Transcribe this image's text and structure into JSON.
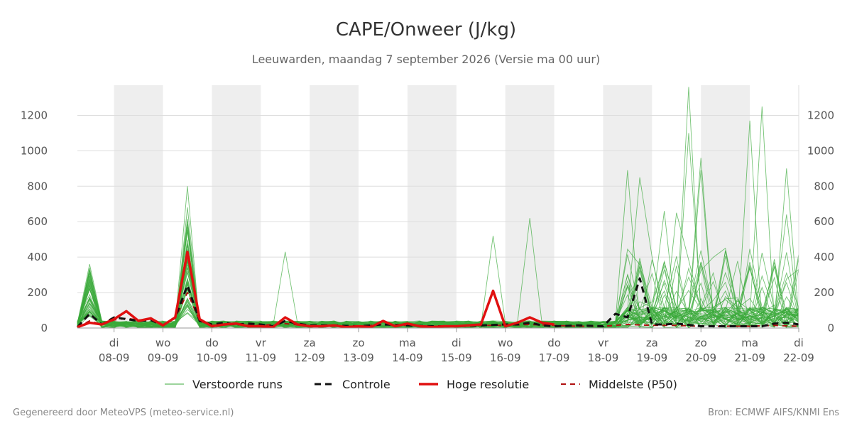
{
  "chart_data": {
    "type": "line",
    "title": "CAPE/Onweer (J/kg)",
    "subtitle": "Leeuwarden, maandag  7 september 2026 (Versie ma 00 uur)",
    "footer_left": "Gegenereerd door MeteoVPS (meteo-service.nl)",
    "footer_right": "Bron: ECMWF AIFS/KNMI Ens",
    "ylim": [
      0,
      1370
    ],
    "yticks": [
      0,
      200,
      400,
      600,
      800,
      1000,
      1200
    ],
    "x_start": 7.25,
    "x_end": 22.0,
    "xticks": [
      {
        "x": 8,
        "day": "di",
        "date": "08-09"
      },
      {
        "x": 9,
        "day": "wo",
        "date": "09-09"
      },
      {
        "x": 10,
        "day": "do",
        "date": "10-09"
      },
      {
        "x": 11,
        "day": "vr",
        "date": "11-09"
      },
      {
        "x": 12,
        "day": "za",
        "date": "12-09"
      },
      {
        "x": 13,
        "day": "zo",
        "date": "13-09"
      },
      {
        "x": 14,
        "day": "ma",
        "date": "14-09"
      },
      {
        "x": 15,
        "day": "di",
        "date": "15-09"
      },
      {
        "x": 16,
        "day": "wo",
        "date": "16-09"
      },
      {
        "x": 17,
        "day": "do",
        "date": "17-09"
      },
      {
        "x": 18,
        "day": "vr",
        "date": "18-09"
      },
      {
        "x": 19,
        "day": "za",
        "date": "19-09"
      },
      {
        "x": 20,
        "day": "zo",
        "date": "20-09"
      },
      {
        "x": 21,
        "day": "ma",
        "date": "21-09"
      },
      {
        "x": 22,
        "day": "di",
        "date": "22-09"
      }
    ],
    "shaded_bands": [
      [
        8,
        9
      ],
      [
        10,
        11
      ],
      [
        12,
        13
      ],
      [
        14,
        15
      ],
      [
        16,
        17
      ],
      [
        18,
        19
      ],
      [
        20,
        21
      ]
    ],
    "colors": {
      "perturbed": "#3aaa3a",
      "control": "#111111",
      "hires": "#e01010",
      "median": "#b01010",
      "band": "#eeeeee",
      "grid": "#dddddd"
    },
    "legend": [
      {
        "name": "Verstoorde runs",
        "style": "perturbed"
      },
      {
        "name": "Controle",
        "style": "control"
      },
      {
        "name": "Hoge resolutie",
        "style": "hires"
      },
      {
        "name": "Middelste (P50)",
        "style": "median"
      }
    ],
    "series": [
      {
        "name": "Controle",
        "x": [
          7.25,
          7.5,
          7.75,
          8.0,
          8.25,
          8.5,
          8.75,
          9.0,
          9.25,
          9.5,
          9.75,
          10.0,
          10.25,
          10.5,
          10.75,
          11.0,
          11.25,
          11.5,
          11.75,
          12.0,
          12.5,
          13.0,
          13.5,
          14.0,
          14.5,
          15.0,
          15.5,
          16.0,
          16.25,
          16.5,
          16.75,
          17.0,
          17.5,
          18.0,
          18.25,
          18.5,
          18.75,
          19.0,
          19.25,
          19.5,
          20.0,
          20.5,
          21.0,
          21.25,
          21.5,
          21.75,
          22.0
        ],
        "y": [
          5,
          80,
          20,
          60,
          50,
          40,
          45,
          15,
          60,
          240,
          40,
          20,
          30,
          20,
          25,
          20,
          10,
          40,
          25,
          15,
          15,
          10,
          20,
          15,
          10,
          10,
          15,
          20,
          20,
          30,
          15,
          10,
          15,
          10,
          80,
          60,
          280,
          20,
          20,
          25,
          10,
          10,
          10,
          10,
          25,
          30,
          20
        ]
      },
      {
        "name": "Hoge resolutie",
        "x": [
          7.25,
          7.5,
          7.75,
          8.0,
          8.25,
          8.5,
          8.75,
          9.0,
          9.25,
          9.5,
          9.75,
          10.0,
          10.25,
          10.5,
          10.75,
          11.0,
          11.25,
          11.5,
          11.75,
          12.0,
          12.25,
          12.5,
          12.75,
          13.0,
          13.25,
          13.5,
          13.75,
          14.0,
          14.25,
          14.5,
          14.75,
          15.0,
          15.25,
          15.5,
          15.75,
          16.0,
          16.25,
          16.5,
          16.75,
          17.0
        ],
        "y": [
          5,
          30,
          20,
          50,
          95,
          40,
          55,
          15,
          60,
          430,
          50,
          10,
          20,
          25,
          10,
          10,
          5,
          60,
          20,
          10,
          10,
          15,
          5,
          10,
          5,
          40,
          10,
          25,
          10,
          5,
          10,
          10,
          15,
          20,
          210,
          10,
          30,
          60,
          30,
          20
        ]
      },
      {
        "name": "Middelste (P50)",
        "x": [
          7.25,
          7.5,
          7.75,
          8.0,
          8.25,
          8.5,
          8.75,
          9.0,
          9.25,
          9.5,
          9.75,
          10.0,
          10.5,
          11.0,
          11.5,
          12.0,
          12.5,
          13.0,
          13.5,
          14.0,
          14.5,
          15.0,
          15.5,
          16.0,
          16.5,
          17.0,
          17.5,
          18.0,
          18.5,
          19.0,
          19.5,
          20.0,
          20.5,
          21.0,
          21.5,
          22.0
        ],
        "y": [
          5,
          40,
          20,
          45,
          55,
          45,
          50,
          15,
          55,
          200,
          40,
          15,
          20,
          15,
          25,
          10,
          10,
          10,
          20,
          15,
          10,
          10,
          15,
          15,
          20,
          15,
          10,
          10,
          20,
          15,
          15,
          10,
          10,
          10,
          15,
          10
        ]
      }
    ]
  }
}
